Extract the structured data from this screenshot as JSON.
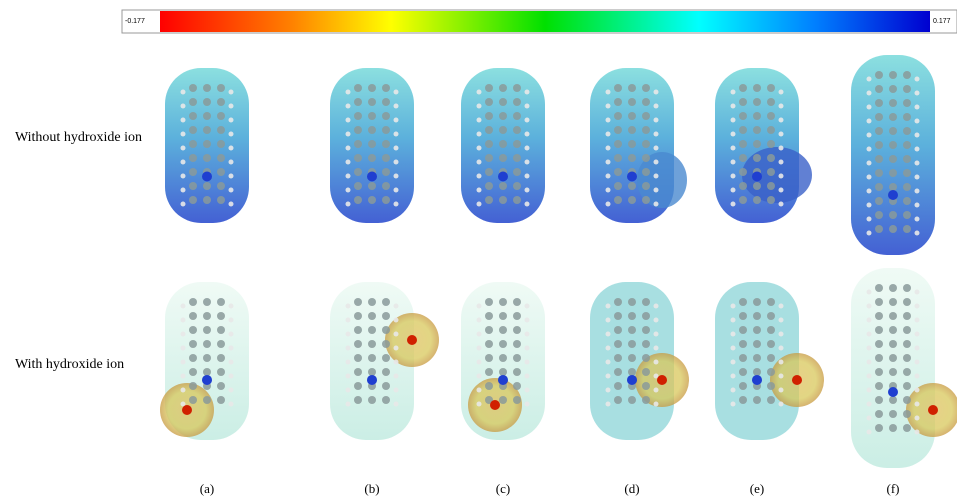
{
  "colorbar": {
    "min": -0.177,
    "max": 0.177
  },
  "rows": [
    "Without hydroxide ion",
    "With hydroxide ion"
  ],
  "panels": [
    "(a)",
    "(b)",
    "(c)",
    "(d)",
    "(e)",
    "(f)"
  ]
}
